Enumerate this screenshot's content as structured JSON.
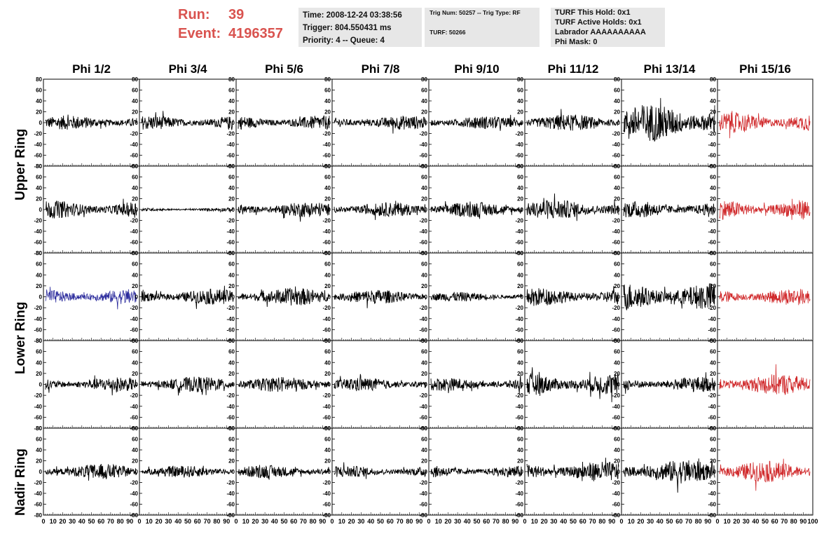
{
  "header": {
    "run_label": "Run:",
    "run_value": "39",
    "event_label": "Event:",
    "event_value": "4196357"
  },
  "info_box_1": {
    "time": "Time: 2008-12-24 03:38:56",
    "trigger": "Trigger: 804.550431 ms",
    "priority": "Priority: 4 -- Queue: 4"
  },
  "info_box_2": {
    "trig": "Trig Num: 50257 -- Trig Type: RF",
    "turf": "TURF: 50266"
  },
  "info_box_3": {
    "this_hold": "TURF This Hold: 0x1",
    "active_holds": "TURF Active Holds: 0x1",
    "labrador": "Labrador AAAAAAAAAA",
    "phi_mask": "Phi Mask: 0"
  },
  "columns": [
    "Phi 1/2",
    "Phi 3/4",
    "Phi 5/6",
    "Phi 7/8",
    "Phi 9/10",
    "Phi 11/12",
    "Phi 13/14",
    "Phi 15/16"
  ],
  "ring_labels": [
    "Upper Ring",
    "Lower Ring",
    "Nadir Ring"
  ],
  "colors": {
    "normal": "#000000",
    "highlight_red": "#d0282a",
    "highlight_blue": "#2a2a9c",
    "header_red": "#d9534f"
  },
  "chart_data": {
    "type": "line",
    "ylim": [
      -80,
      80
    ],
    "xlim": [
      0,
      100
    ],
    "y_ticks": [
      -80,
      -60,
      -40,
      -20,
      0,
      20,
      40,
      60,
      80
    ],
    "x_tick_labels": [
      "0",
      "10",
      "20",
      "30",
      "40",
      "50",
      "60",
      "70",
      "80",
      "90"
    ],
    "rows": 5,
    "cols": 8,
    "grid": false,
    "panel_amplitudes": [
      [
        12,
        12,
        12,
        12,
        11,
        14,
        32,
        17
      ],
      [
        15,
        3,
        13,
        12,
        13,
        17,
        14,
        17
      ],
      [
        13,
        13,
        15,
        12,
        8,
        15,
        24,
        14
      ],
      [
        12,
        13,
        13,
        11,
        11,
        19,
        13,
        18
      ],
      [
        13,
        10,
        11,
        10,
        10,
        17,
        20,
        18
      ]
    ],
    "red_column": 7,
    "blue_panel": [
      2,
      0
    ]
  }
}
